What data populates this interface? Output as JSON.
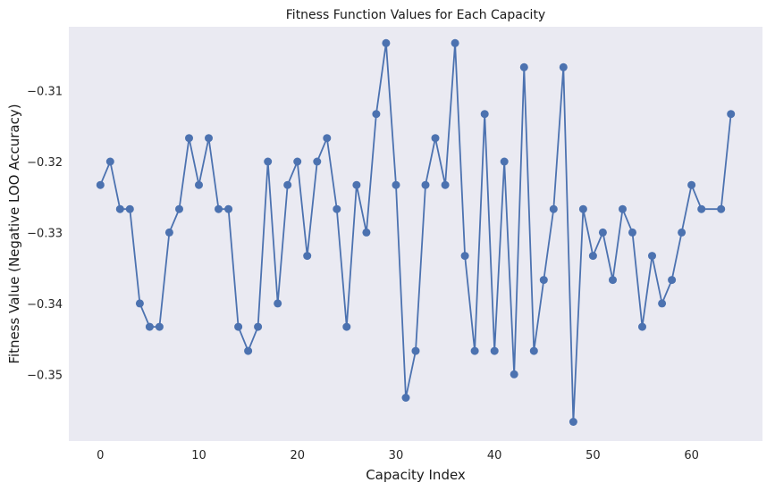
{
  "chart_data": {
    "type": "line",
    "title": "Fitness Function Values for Each Capacity",
    "xlabel": "Capacity Index",
    "ylabel": "Fitness Value (Negative LOO Accuracy)",
    "xlim": [
      -3.2,
      67.2
    ],
    "ylim": [
      -0.3594,
      -0.301
    ],
    "x_ticks": [
      0,
      10,
      20,
      30,
      40,
      50,
      60
    ],
    "y_ticks": [
      -0.35,
      -0.34,
      -0.33,
      -0.32,
      -0.31
    ],
    "y_tick_labels": [
      "−0.35",
      "−0.34",
      "−0.33",
      "−0.32",
      "−0.31"
    ],
    "grid": false,
    "marker": "circle",
    "colors": {
      "series": "#4c72b0",
      "plot_background": "#eaeaf2"
    },
    "series": [
      {
        "x": [
          0,
          1,
          2,
          3,
          4,
          5,
          6,
          7,
          8,
          9,
          10,
          11,
          12,
          13,
          14,
          15,
          16,
          17,
          18,
          19,
          20,
          21,
          22,
          23,
          24,
          25,
          26,
          27,
          28,
          29,
          30,
          31,
          32,
          33,
          34,
          35,
          36,
          37,
          38,
          39,
          40,
          41,
          42,
          43,
          44,
          45,
          46,
          47,
          48,
          49,
          50,
          51,
          52,
          53,
          54,
          55,
          56,
          57,
          58,
          59,
          60,
          61,
          63,
          64
        ],
        "y": [
          -0.3233,
          -0.32,
          -0.3267,
          -0.3267,
          -0.34,
          -0.3433,
          -0.3433,
          -0.33,
          -0.3267,
          -0.3167,
          -0.3233,
          -0.3167,
          -0.3267,
          -0.3267,
          -0.3433,
          -0.3467,
          -0.3433,
          -0.32,
          -0.34,
          -0.3233,
          -0.32,
          -0.3333,
          -0.32,
          -0.3167,
          -0.3267,
          -0.3433,
          -0.3233,
          -0.33,
          -0.3133,
          -0.3033,
          -0.3233,
          -0.3533,
          -0.3467,
          -0.3233,
          -0.3167,
          -0.3233,
          -0.3033,
          -0.3333,
          -0.3467,
          -0.3133,
          -0.3467,
          -0.32,
          -0.35,
          -0.3067,
          -0.3467,
          -0.3367,
          -0.3267,
          -0.3067,
          -0.3567,
          -0.3267,
          -0.3333,
          -0.33,
          -0.3367,
          -0.3267,
          -0.33,
          -0.3433,
          -0.3333,
          -0.34,
          -0.3367,
          -0.33,
          -0.3233,
          -0.3267,
          -0.3267,
          -0.3133
        ]
      }
    ]
  }
}
